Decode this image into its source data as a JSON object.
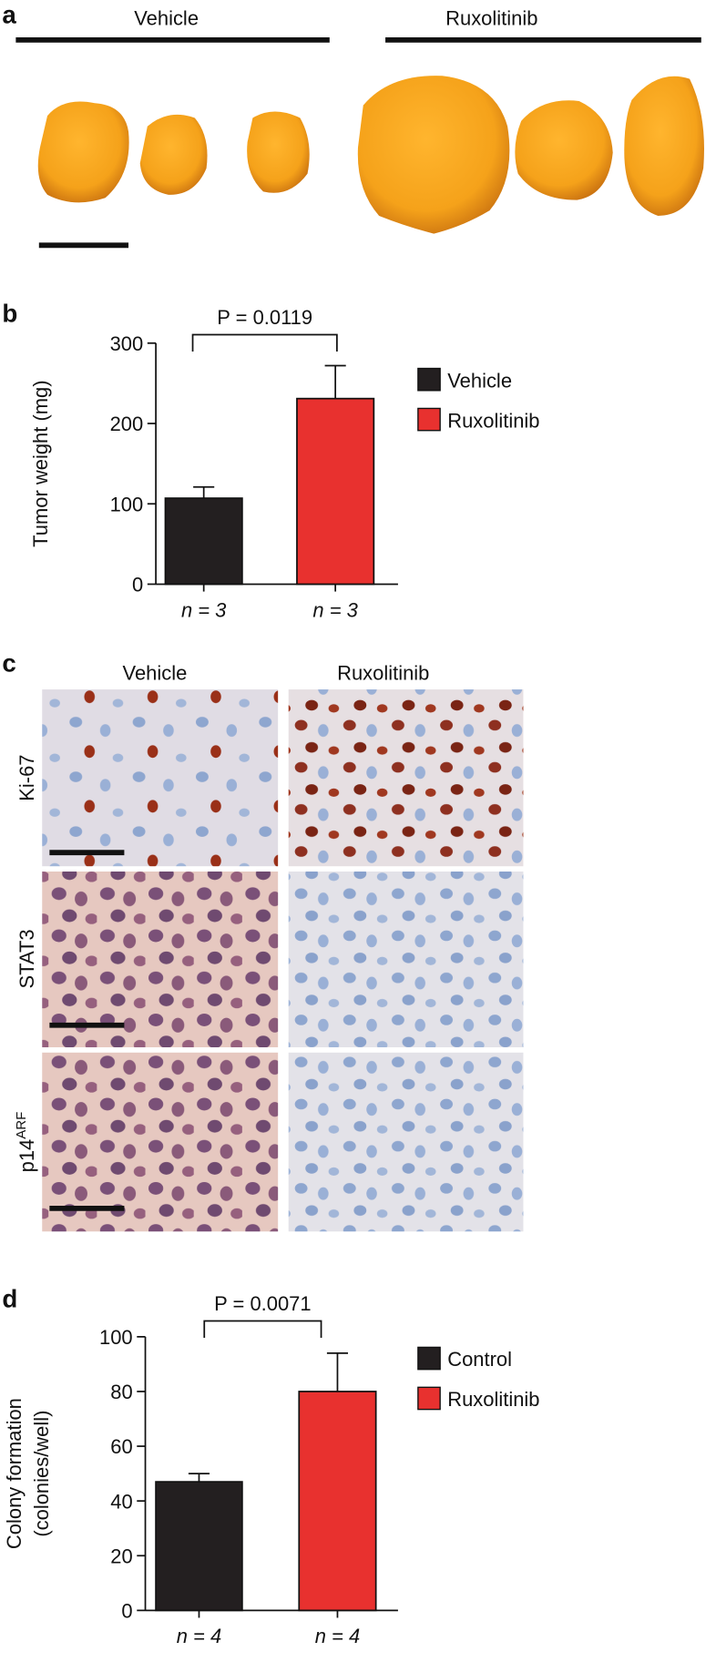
{
  "panel_a": {
    "label": "a",
    "groups": [
      "Vehicle",
      "Ruxolitinib"
    ]
  },
  "panel_c": {
    "label": "c",
    "columns": [
      "Vehicle",
      "Ruxolitinib"
    ],
    "rows": [
      "Ki-67",
      "STAT3",
      {
        "text": "p14",
        "sup": "ARF"
      }
    ]
  },
  "chart_data": [
    {
      "type": "bar",
      "panel": "b",
      "ylabel": [
        "Tumor weight (mg)"
      ],
      "annotation": "P = 0.0119",
      "categories": [
        "n = 3",
        "n = 3"
      ],
      "values": [
        107,
        231
      ],
      "errors": [
        14,
        41
      ],
      "colors": [
        "#231f20",
        "#e8312f"
      ],
      "legend": [
        "Vehicle",
        "Ruxolitinib"
      ],
      "ylim": [
        0,
        300
      ],
      "yticks": [
        0,
        100,
        200,
        300
      ]
    },
    {
      "type": "bar",
      "panel": "d",
      "ylabel": [
        "Colony formation",
        "(colonies/well)"
      ],
      "annotation": "P = 0.0071",
      "categories": [
        "n = 4",
        "n = 4"
      ],
      "values": [
        47,
        80
      ],
      "errors": [
        3,
        14
      ],
      "colors": [
        "#231f20",
        "#e8312f"
      ],
      "legend": [
        "Control",
        "Ruxolitinib"
      ],
      "ylim": [
        0,
        100
      ],
      "yticks": [
        0,
        20,
        40,
        60,
        80,
        100
      ]
    }
  ]
}
